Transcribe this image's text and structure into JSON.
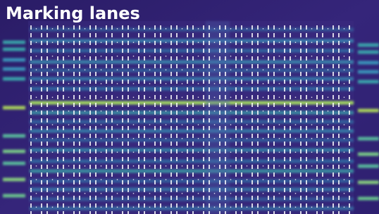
{
  "title": "Marking lanes"
}
